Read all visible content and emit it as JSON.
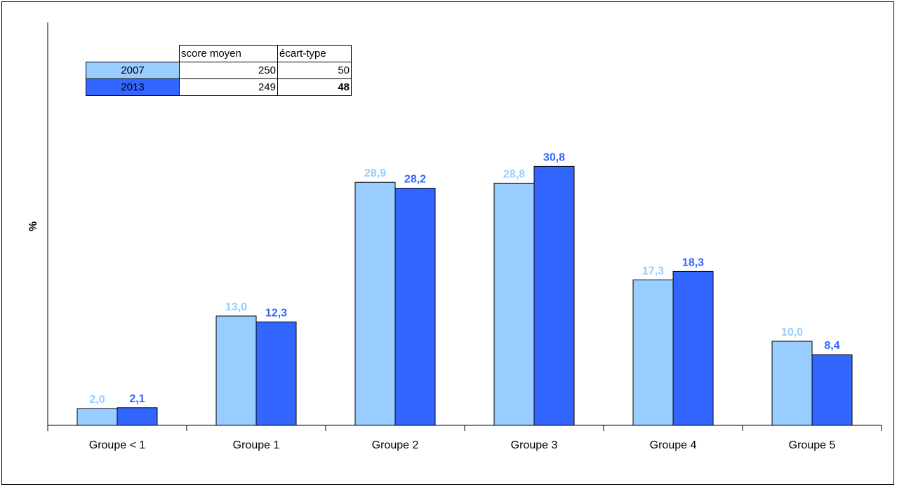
{
  "chart_data": {
    "type": "bar",
    "ylabel": "%",
    "xlabel": "",
    "categories": [
      "Groupe < 1",
      "Groupe 1",
      "Groupe 2",
      "Groupe 3",
      "Groupe 4",
      "Groupe 5"
    ],
    "series": [
      {
        "name": "2007",
        "values": [
          2.0,
          13.0,
          28.9,
          28.8,
          17.3,
          10.0
        ],
        "labels": [
          "2,0",
          "13,0",
          "28,9",
          "28,8",
          "17,3",
          "10,0"
        ],
        "color": "#99ccff",
        "label_color": "#99ccff"
      },
      {
        "name": "2013",
        "values": [
          2.1,
          12.3,
          28.2,
          30.8,
          18.3,
          8.4
        ],
        "labels": [
          "2,1",
          "12,3",
          "28,2",
          "30,8",
          "18,3",
          "8,4"
        ],
        "color": "#3366ff",
        "label_color": "#3366ff"
      }
    ],
    "ylim": [
      0,
      35
    ],
    "grid": false
  },
  "legend_table": {
    "headers": [
      "score moyen",
      "écart-type"
    ],
    "rows": [
      {
        "year": "2007",
        "score_moyen": "250",
        "ecart_type": "50",
        "color": "#99ccff"
      },
      {
        "year": "2013",
        "score_moyen": "249",
        "ecart_type": "48",
        "color": "#3366ff"
      }
    ]
  }
}
